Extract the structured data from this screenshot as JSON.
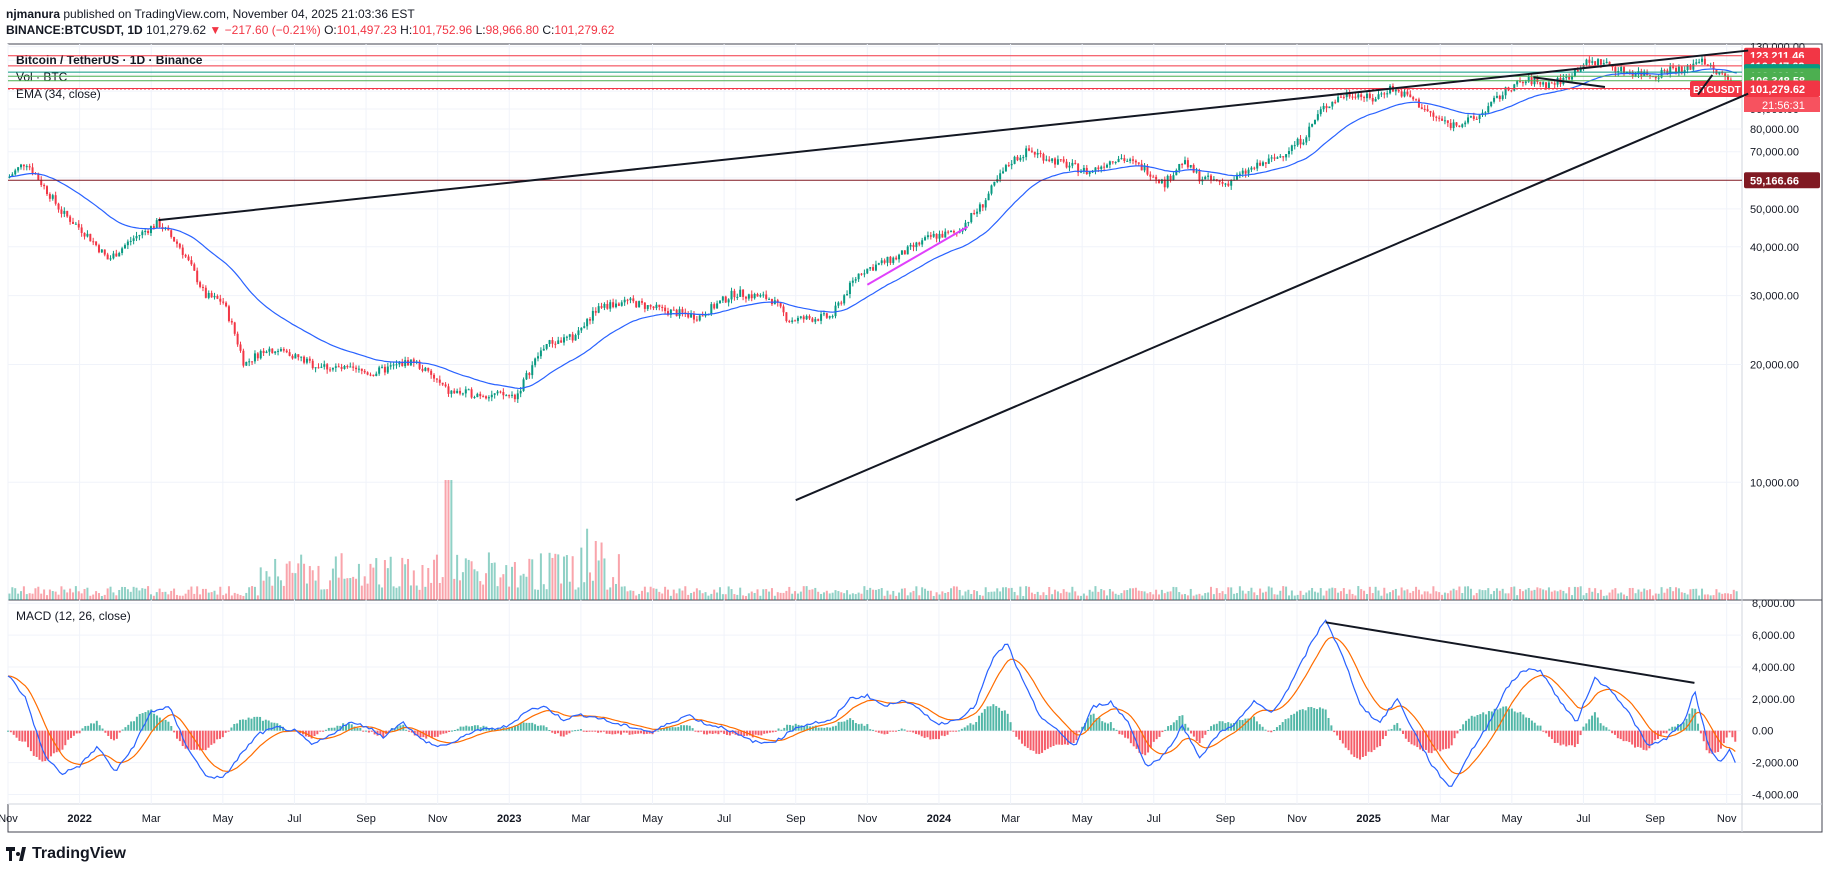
{
  "header": {
    "publisher": "njmanura",
    "published_text": "published on TradingView.com, November 04, 2025 21:03:36 EST",
    "symbol": "BINANCE:BTCUSDT, 1D",
    "last": "101,279.62",
    "change": "−217.60 (−0.21%)",
    "o_label": "O:",
    "o_value": "101,497.23",
    "h_label": "H:",
    "h_value": "101,752.96",
    "l_label": "L:",
    "l_value": "98,966.80",
    "c_label": "C:",
    "c_value": "101,279.62"
  },
  "footer": {
    "brand": "TradingView"
  },
  "colors": {
    "up": "#089981",
    "down": "#f23645",
    "ema": "#2962ff",
    "macd": "#2962ff",
    "signal": "#ff6d00",
    "pink": "#e040fb",
    "dark_red": "#801922"
  },
  "chart_data": [
    {
      "type": "candlestick",
      "title": "Bitcoin / TetherUS · 1D · Binance",
      "legend": [
        "Vol · BTC",
        "EMA (34, close)"
      ],
      "currency": "USDT",
      "ylim": [
        5000,
        132000
      ],
      "y_ticks": [
        10000,
        20000,
        30000,
        40000,
        50000,
        60000,
        70000,
        80000,
        90000,
        100000,
        110000,
        120000,
        130000
      ],
      "y_tick_labels": [
        "10,000.00",
        "20,000.00",
        "30,000.00",
        "40,000.00",
        "50,000.00",
        "60,000.00",
        "70,000.00",
        "80,000.00",
        "90,000.00",
        "100,000.00",
        "110,000.00",
        "120,000.00",
        "130,000.00"
      ],
      "x_ticks": [
        "Nov",
        "2022",
        "Mar",
        "May",
        "Jul",
        "Sep",
        "Nov",
        "2023",
        "Mar",
        "May",
        "Jul",
        "Sep",
        "Nov",
        "2024",
        "Mar",
        "May",
        "Jul",
        "Sep",
        "Nov",
        "2025",
        "Mar",
        "May",
        "Jul",
        "Sep",
        "Nov"
      ],
      "x_tick_months": [
        0,
        2,
        4,
        6,
        8,
        10,
        12,
        14,
        16,
        18,
        20,
        22,
        24,
        26,
        28,
        30,
        32,
        34,
        36,
        38,
        40,
        42,
        44,
        46,
        48
      ],
      "x_range_months": [
        0,
        48.4
      ],
      "price_path": [
        [
          0,
          60000
        ],
        [
          0.5,
          66000
        ],
        [
          1.0,
          57000
        ],
        [
          1.5,
          49000
        ],
        [
          2.2,
          43000
        ],
        [
          2.8,
          37000
        ],
        [
          3.5,
          42000
        ],
        [
          4.2,
          46000
        ],
        [
          4.8,
          40000
        ],
        [
          5.5,
          30000
        ],
        [
          6.0,
          29000
        ],
        [
          6.6,
          20000
        ],
        [
          7.2,
          22000
        ],
        [
          7.8,
          21500
        ],
        [
          8.5,
          20000
        ],
        [
          9.3,
          19500
        ],
        [
          10.2,
          19000
        ],
        [
          11.3,
          20500
        ],
        [
          12.3,
          17000
        ],
        [
          13.3,
          16800
        ],
        [
          14.2,
          16600
        ],
        [
          15.0,
          22500
        ],
        [
          15.8,
          23500
        ],
        [
          16.5,
          28000
        ],
        [
          17.3,
          29000
        ],
        [
          18.3,
          27500
        ],
        [
          19.3,
          26500
        ],
        [
          20.3,
          30500
        ],
        [
          21.3,
          29500
        ],
        [
          21.8,
          26000
        ],
        [
          23.0,
          26500
        ],
        [
          23.8,
          34500
        ],
        [
          24.8,
          37500
        ],
        [
          25.8,
          42500
        ],
        [
          26.5,
          43500
        ],
        [
          27.2,
          51000
        ],
        [
          28.0,
          66000
        ],
        [
          28.5,
          70500
        ],
        [
          29.3,
          66000
        ],
        [
          30.2,
          62000
        ],
        [
          31.0,
          68000
        ],
        [
          31.8,
          63000
        ],
        [
          32.3,
          58000
        ],
        [
          32.8,
          66000
        ],
        [
          33.3,
          60000
        ],
        [
          34.0,
          58000
        ],
        [
          34.7,
          63000
        ],
        [
          35.5,
          68000
        ],
        [
          36.2,
          76000
        ],
        [
          36.7,
          90000
        ],
        [
          37.2,
          97000
        ],
        [
          37.6,
          99000
        ],
        [
          38.1,
          95000
        ],
        [
          38.6,
          102000
        ],
        [
          39.2,
          96000
        ],
        [
          39.8,
          86000
        ],
        [
          40.3,
          82000
        ],
        [
          41.0,
          85000
        ],
        [
          41.5,
          94000
        ],
        [
          42.0,
          103000
        ],
        [
          42.5,
          106500
        ],
        [
          43.0,
          104000
        ],
        [
          43.5,
          107500
        ],
        [
          44.0,
          117500
        ],
        [
          44.5,
          119000
        ],
        [
          45.0,
          113000
        ],
        [
          45.5,
          111500
        ],
        [
          46.0,
          110000
        ],
        [
          46.5,
          115000
        ],
        [
          46.8,
          112000
        ],
        [
          47.3,
          122000
        ],
        [
          47.6,
          113000
        ],
        [
          48.0,
          108000
        ],
        [
          48.3,
          101300
        ]
      ],
      "last_price": "101,279.62",
      "last_label": "BTCUSDT",
      "countdown": "21:56:31",
      "horizontal_levels": [
        {
          "value": 123211.46,
          "label": "123,211.46",
          "color": "#f23645"
        },
        {
          "value": 116047.62,
          "label": "116,047.62",
          "color": "#f23645"
        },
        {
          "value": 111835.22,
          "label": "111,835.22",
          "color": "#089981"
        },
        {
          "value": 109181.2,
          "label": "109,181.20",
          "color": "#4caf50"
        },
        {
          "value": 106348.58,
          "label": "106,348.58",
          "color": "#4caf50"
        },
        {
          "value": 101611.28,
          "label": "101,611.28",
          "color": "#f23645"
        },
        {
          "value": 101279.62,
          "label": "101,279.62",
          "color": "#f23645"
        },
        {
          "value": 59166.66,
          "label": "59,166.66",
          "color": "#801922"
        }
      ],
      "trendlines": [
        {
          "from": [
            4.2,
            46800
          ],
          "to": [
            48.6,
            127000
          ],
          "color": "#131722"
        },
        {
          "from": [
            22.0,
            9000
          ],
          "to": [
            48.6,
            98500
          ],
          "color": "#131722"
        },
        {
          "from": [
            24.0,
            32000
          ],
          "to": [
            26.8,
            45000
          ],
          "color": "#e040fb"
        },
        {
          "from": [
            42.6,
            108500
          ],
          "to": [
            44.6,
            102500
          ],
          "color": "#131722"
        },
        {
          "from": [
            47.2,
            98000
          ],
          "to": [
            47.6,
            110000
          ],
          "color": "#131722"
        }
      ]
    },
    {
      "type": "line",
      "title": "MACD (12, 26, close)",
      "ylim": [
        -4600,
        8200
      ],
      "y_ticks": [
        -4000,
        -2000,
        0,
        2000,
        4000,
        6000,
        8000
      ],
      "y_tick_labels": [
        "-4,000.00",
        "-2,000.00",
        "0.00",
        "2,000.00",
        "4,000.00",
        "6,000.00",
        "8,000.00"
      ],
      "macd_path": [
        [
          0,
          3500
        ],
        [
          0.5,
          2000
        ],
        [
          1.0,
          -1500
        ],
        [
          1.5,
          -2700
        ],
        [
          2.0,
          -2200
        ],
        [
          2.5,
          -1000
        ],
        [
          3.0,
          -2600
        ],
        [
          3.5,
          -1000
        ],
        [
          4.0,
          1200
        ],
        [
          4.5,
          1500
        ],
        [
          5.0,
          -1000
        ],
        [
          5.5,
          -2800
        ],
        [
          6.0,
          -3000
        ],
        [
          6.5,
          -1500
        ],
        [
          7.0,
          -200
        ],
        [
          7.5,
          200
        ],
        [
          8.0,
          0
        ],
        [
          8.5,
          -900
        ],
        [
          9.0,
          -300
        ],
        [
          9.5,
          500
        ],
        [
          10.0,
          300
        ],
        [
          10.5,
          -400
        ],
        [
          11.0,
          600
        ],
        [
          11.5,
          -500
        ],
        [
          12.0,
          -1000
        ],
        [
          12.5,
          -700
        ],
        [
          13.0,
          0
        ],
        [
          13.5,
          100
        ],
        [
          14.0,
          300
        ],
        [
          14.5,
          1300
        ],
        [
          15.0,
          1500
        ],
        [
          15.5,
          700
        ],
        [
          16.0,
          1000
        ],
        [
          16.5,
          800
        ],
        [
          17.0,
          400
        ],
        [
          17.5,
          200
        ],
        [
          18.0,
          -100
        ],
        [
          18.5,
          500
        ],
        [
          19.0,
          1000
        ],
        [
          19.5,
          400
        ],
        [
          20.0,
          200
        ],
        [
          20.5,
          -400
        ],
        [
          21.0,
          -800
        ],
        [
          21.5,
          -600
        ],
        [
          22.0,
          200
        ],
        [
          22.5,
          500
        ],
        [
          23.0,
          600
        ],
        [
          23.5,
          2000
        ],
        [
          24.0,
          2200
        ],
        [
          24.5,
          1500
        ],
        [
          25.0,
          2000
        ],
        [
          25.5,
          1200
        ],
        [
          26.0,
          400
        ],
        [
          26.5,
          700
        ],
        [
          27.0,
          1500
        ],
        [
          27.5,
          4500
        ],
        [
          27.9,
          5500
        ],
        [
          28.3,
          3300
        ],
        [
          28.8,
          1000
        ],
        [
          29.3,
          0
        ],
        [
          29.8,
          -1000
        ],
        [
          30.3,
          1500
        ],
        [
          30.8,
          1800
        ],
        [
          31.3,
          500
        ],
        [
          31.8,
          -2300
        ],
        [
          32.3,
          -1500
        ],
        [
          32.8,
          300
        ],
        [
          33.3,
          -1700
        ],
        [
          33.8,
          -200
        ],
        [
          34.3,
          500
        ],
        [
          34.8,
          1800
        ],
        [
          35.3,
          1100
        ],
        [
          35.8,
          2800
        ],
        [
          36.4,
          5500
        ],
        [
          36.8,
          7000
        ],
        [
          37.3,
          4500
        ],
        [
          37.8,
          1500
        ],
        [
          38.3,
          500
        ],
        [
          38.8,
          2000
        ],
        [
          39.3,
          -200
        ],
        [
          39.8,
          -2300
        ],
        [
          40.3,
          -3600
        ],
        [
          40.8,
          -1500
        ],
        [
          41.3,
          200
        ],
        [
          41.8,
          2500
        ],
        [
          42.3,
          3800
        ],
        [
          42.8,
          3800
        ],
        [
          43.3,
          2000
        ],
        [
          43.8,
          500
        ],
        [
          44.3,
          3300
        ],
        [
          44.8,
          2500
        ],
        [
          45.3,
          1000
        ],
        [
          45.8,
          -1000
        ],
        [
          46.3,
          -500
        ],
        [
          46.8,
          500
        ],
        [
          47.1,
          2500
        ],
        [
          47.5,
          -1000
        ],
        [
          47.8,
          -2000
        ],
        [
          48.1,
          -1200
        ],
        [
          48.3,
          -2200
        ]
      ],
      "trendline": {
        "from": [
          36.8,
          6800
        ],
        "to": [
          47.1,
          3000
        ]
      }
    }
  ]
}
